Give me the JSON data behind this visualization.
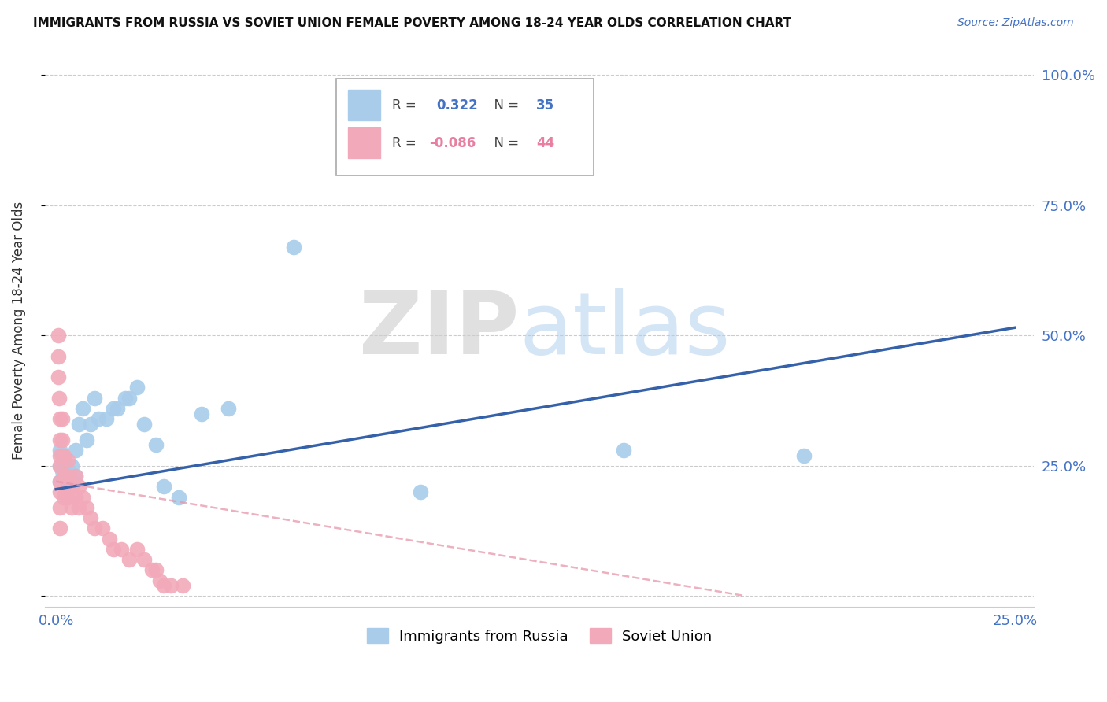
{
  "title": "IMMIGRANTS FROM RUSSIA VS SOVIET UNION FEMALE POVERTY AMONG 18-24 YEAR OLDS CORRELATION CHART",
  "source": "Source: ZipAtlas.com",
  "ylabel": "Female Poverty Among 18-24 Year Olds",
  "legend_blue_R": "0.322",
  "legend_blue_N": "35",
  "legend_pink_R": "-0.086",
  "legend_pink_N": "44",
  "blue_color": "#A8CCEA",
  "pink_color": "#F2AABA",
  "trendline_blue_color": "#3461AA",
  "trendline_pink_color": "#E896AA",
  "xlim": [
    -0.003,
    0.255
  ],
  "ylim": [
    -0.02,
    1.04
  ],
  "blue_x": [
    0.001,
    0.001,
    0.001,
    0.0015,
    0.0015,
    0.002,
    0.002,
    0.003,
    0.003,
    0.004,
    0.004,
    0.005,
    0.005,
    0.006,
    0.007,
    0.008,
    0.009,
    0.01,
    0.011,
    0.013,
    0.015,
    0.016,
    0.018,
    0.019,
    0.021,
    0.023,
    0.026,
    0.028,
    0.032,
    0.038,
    0.045,
    0.062,
    0.095,
    0.148,
    0.195
  ],
  "blue_y": [
    0.22,
    0.25,
    0.28,
    0.24,
    0.27,
    0.23,
    0.26,
    0.22,
    0.24,
    0.22,
    0.25,
    0.23,
    0.28,
    0.33,
    0.36,
    0.3,
    0.33,
    0.38,
    0.34,
    0.34,
    0.36,
    0.36,
    0.38,
    0.38,
    0.4,
    0.33,
    0.29,
    0.21,
    0.19,
    0.35,
    0.36,
    0.67,
    0.2,
    0.28,
    0.27
  ],
  "pink_x": [
    0.0005,
    0.0005,
    0.0005,
    0.0008,
    0.001,
    0.001,
    0.001,
    0.001,
    0.001,
    0.001,
    0.001,
    0.001,
    0.0015,
    0.0015,
    0.002,
    0.002,
    0.002,
    0.0025,
    0.003,
    0.003,
    0.003,
    0.004,
    0.004,
    0.005,
    0.005,
    0.006,
    0.006,
    0.007,
    0.008,
    0.009,
    0.01,
    0.012,
    0.014,
    0.015,
    0.017,
    0.019,
    0.021,
    0.023,
    0.025,
    0.026,
    0.027,
    0.028,
    0.03,
    0.033
  ],
  "pink_y": [
    0.5,
    0.46,
    0.42,
    0.38,
    0.34,
    0.3,
    0.27,
    0.25,
    0.22,
    0.2,
    0.17,
    0.13,
    0.34,
    0.3,
    0.27,
    0.23,
    0.19,
    0.2,
    0.26,
    0.23,
    0.19,
    0.21,
    0.17,
    0.23,
    0.19,
    0.21,
    0.17,
    0.19,
    0.17,
    0.15,
    0.13,
    0.13,
    0.11,
    0.09,
    0.09,
    0.07,
    0.09,
    0.07,
    0.05,
    0.05,
    0.03,
    0.02,
    0.02,
    0.02
  ],
  "trendline_blue_x0": 0.0,
  "trendline_blue_y0": 0.205,
  "trendline_blue_x1": 0.25,
  "trendline_blue_y1": 0.515,
  "trendline_pink_x0": 0.0,
  "trendline_pink_y0": 0.22,
  "trendline_pink_x1": 0.18,
  "trendline_pink_y1": 0.0
}
